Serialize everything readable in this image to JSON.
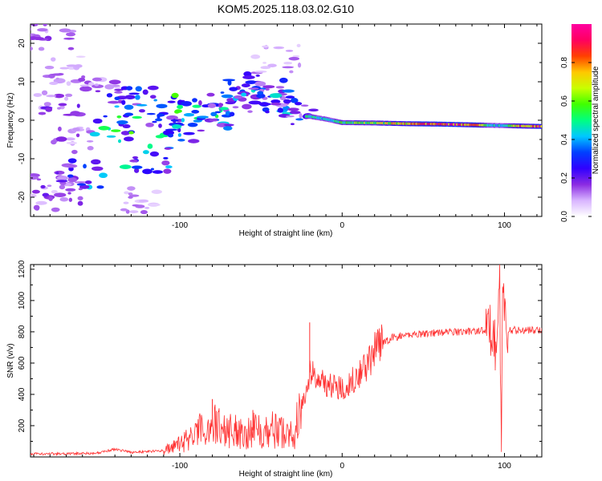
{
  "title": "KOM5.2025.118.03.02.G10",
  "colorbar": {
    "label": "Normalized spectral amplitude",
    "ticks": [
      "0.0",
      "0.2",
      "0.4",
      "0.6",
      "0.8"
    ],
    "tick_values": [
      0.0,
      0.2,
      0.4,
      0.6,
      0.8
    ],
    "range": [
      0,
      1
    ],
    "colors": [
      "#ffffff",
      "#d8b4ff",
      "#8a2be2",
      "#3000ff",
      "#0040ff",
      "#00c8ff",
      "#00ff80",
      "#40ff00",
      "#c8ff00",
      "#ffc800",
      "#ff4000",
      "#ff0060",
      "#ff00a0"
    ]
  },
  "chart_data": [
    {
      "type": "heatmap",
      "xlabel": "Height of straight line (km)",
      "ylabel": "Frequency (Hz)",
      "xlim": [
        -192,
        123
      ],
      "ylim": [
        -25,
        25
      ],
      "xticks": [
        -100,
        0,
        100
      ],
      "xtick_labels": [
        "-100",
        "0",
        "100"
      ],
      "yticks": [
        -20,
        -10,
        0,
        10,
        20
      ],
      "ytick_labels": [
        "-20",
        "-10",
        "0",
        "10",
        "20"
      ],
      "ridge": {
        "description_points": [
          {
            "x": -20,
            "y": 1.0
          },
          {
            "x": -10,
            "y": 0.3
          },
          {
            "x": 0,
            "y": -0.6
          },
          {
            "x": 20,
            "y": -0.7
          },
          {
            "x": 40,
            "y": -0.9
          },
          {
            "x": 60,
            "y": -1.0
          },
          {
            "x": 80,
            "y": -1.2
          },
          {
            "x": 100,
            "y": -1.4
          },
          {
            "x": 123,
            "y": -1.6
          }
        ],
        "amplitude": [
          {
            "x": -20,
            "a": 0.55
          },
          {
            "x": -10,
            "a": 0.45
          },
          {
            "x": 0,
            "a": 0.55
          },
          {
            "x": 20,
            "a": 0.65
          },
          {
            "x": 40,
            "a": 0.8
          },
          {
            "x": 60,
            "a": 0.95
          },
          {
            "x": 80,
            "a": 0.9
          },
          {
            "x": 90,
            "a": 0.55
          },
          {
            "x": 100,
            "a": 0.45
          },
          {
            "x": 110,
            "a": 0.85
          },
          {
            "x": 123,
            "a": 0.9
          }
        ]
      },
      "clusters": [
        {
          "x": -180,
          "y": 22,
          "a": 0.12
        },
        {
          "x": -170,
          "y": 13,
          "a": 0.1
        },
        {
          "x": -175,
          "y": 4,
          "a": 0.15
        },
        {
          "x": -165,
          "y": -5,
          "a": 0.12
        },
        {
          "x": -160,
          "y": -14,
          "a": 0.3
        },
        {
          "x": -175,
          "y": -20,
          "a": 0.12
        },
        {
          "x": -150,
          "y": 8,
          "a": 0.12
        },
        {
          "x": -140,
          "y": -2,
          "a": 0.4
        },
        {
          "x": -130,
          "y": 5,
          "a": 0.3
        },
        {
          "x": -120,
          "y": -10,
          "a": 0.35
        },
        {
          "x": -110,
          "y": 2,
          "a": 0.3
        },
        {
          "x": -100,
          "y": -2,
          "a": 0.35
        },
        {
          "x": -90,
          "y": 3,
          "a": 0.4
        },
        {
          "x": -80,
          "y": 1,
          "a": 0.35
        },
        {
          "x": -70,
          "y": 4,
          "a": 0.25
        },
        {
          "x": -60,
          "y": 7,
          "a": 0.3
        },
        {
          "x": -50,
          "y": 9,
          "a": 0.2
        },
        {
          "x": -40,
          "y": 5,
          "a": 0.3
        },
        {
          "x": -30,
          "y": 2,
          "a": 0.25
        },
        {
          "x": -40,
          "y": 16,
          "a": 0.1
        },
        {
          "x": -125,
          "y": -21,
          "a": 0.1
        },
        {
          "x": -185,
          "y": -17,
          "a": 0.15
        }
      ]
    },
    {
      "type": "line",
      "xlabel": "Height of straight line (km)",
      "ylabel": "SNR (v/v)",
      "xlim": [
        -192,
        123
      ],
      "ylim": [
        0,
        1230
      ],
      "xticks": [
        -100,
        0,
        100
      ],
      "xtick_labels": [
        "-100",
        "0",
        "100"
      ],
      "yticks": [
        200,
        400,
        600,
        800,
        1000,
        1200
      ],
      "ytick_labels": [
        "200",
        "400",
        "600",
        "800",
        "1000",
        "1200"
      ],
      "series": [
        {
          "color": "#ff3030",
          "points": [
            {
              "x": -192,
              "y": 20
            },
            {
              "x": -170,
              "y": 20
            },
            {
              "x": -150,
              "y": 25
            },
            {
              "x": -140,
              "y": 50
            },
            {
              "x": -130,
              "y": 30
            },
            {
              "x": -110,
              "y": 40
            },
            {
              "x": -100,
              "y": 80
            },
            {
              "x": -90,
              "y": 150
            },
            {
              "x": -80,
              "y": 210
            },
            {
              "x": -70,
              "y": 170
            },
            {
              "x": -60,
              "y": 160
            },
            {
              "x": -50,
              "y": 180
            },
            {
              "x": -40,
              "y": 170
            },
            {
              "x": -30,
              "y": 140
            },
            {
              "x": -25,
              "y": 300
            },
            {
              "x": -20,
              "y": 540
            },
            {
              "x": -15,
              "y": 500
            },
            {
              "x": -10,
              "y": 470
            },
            {
              "x": -5,
              "y": 450
            },
            {
              "x": 0,
              "y": 440
            },
            {
              "x": 5,
              "y": 480
            },
            {
              "x": 10,
              "y": 530
            },
            {
              "x": 15,
              "y": 580
            },
            {
              "x": 20,
              "y": 680
            },
            {
              "x": 25,
              "y": 730
            },
            {
              "x": 30,
              "y": 760
            },
            {
              "x": 40,
              "y": 780
            },
            {
              "x": 50,
              "y": 790
            },
            {
              "x": 60,
              "y": 795
            },
            {
              "x": 70,
              "y": 800
            },
            {
              "x": 80,
              "y": 805
            },
            {
              "x": 90,
              "y": 810
            },
            {
              "x": 93,
              "y": 840
            },
            {
              "x": 95,
              "y": 600
            },
            {
              "x": 97,
              "y": 1230
            },
            {
              "x": 98,
              "y": 30
            },
            {
              "x": 99,
              "y": 1100
            },
            {
              "x": 101,
              "y": 810
            },
            {
              "x": 110,
              "y": 810
            },
            {
              "x": 123,
              "y": 810
            }
          ],
          "spikes": [
            {
              "x": -20,
              "y": 860
            },
            {
              "x": -80,
              "y": 370
            },
            {
              "x": -55,
              "y": 300
            },
            {
              "x": 97,
              "y": 1230
            },
            {
              "x": 98,
              "y": 30
            }
          ]
        }
      ]
    }
  ]
}
